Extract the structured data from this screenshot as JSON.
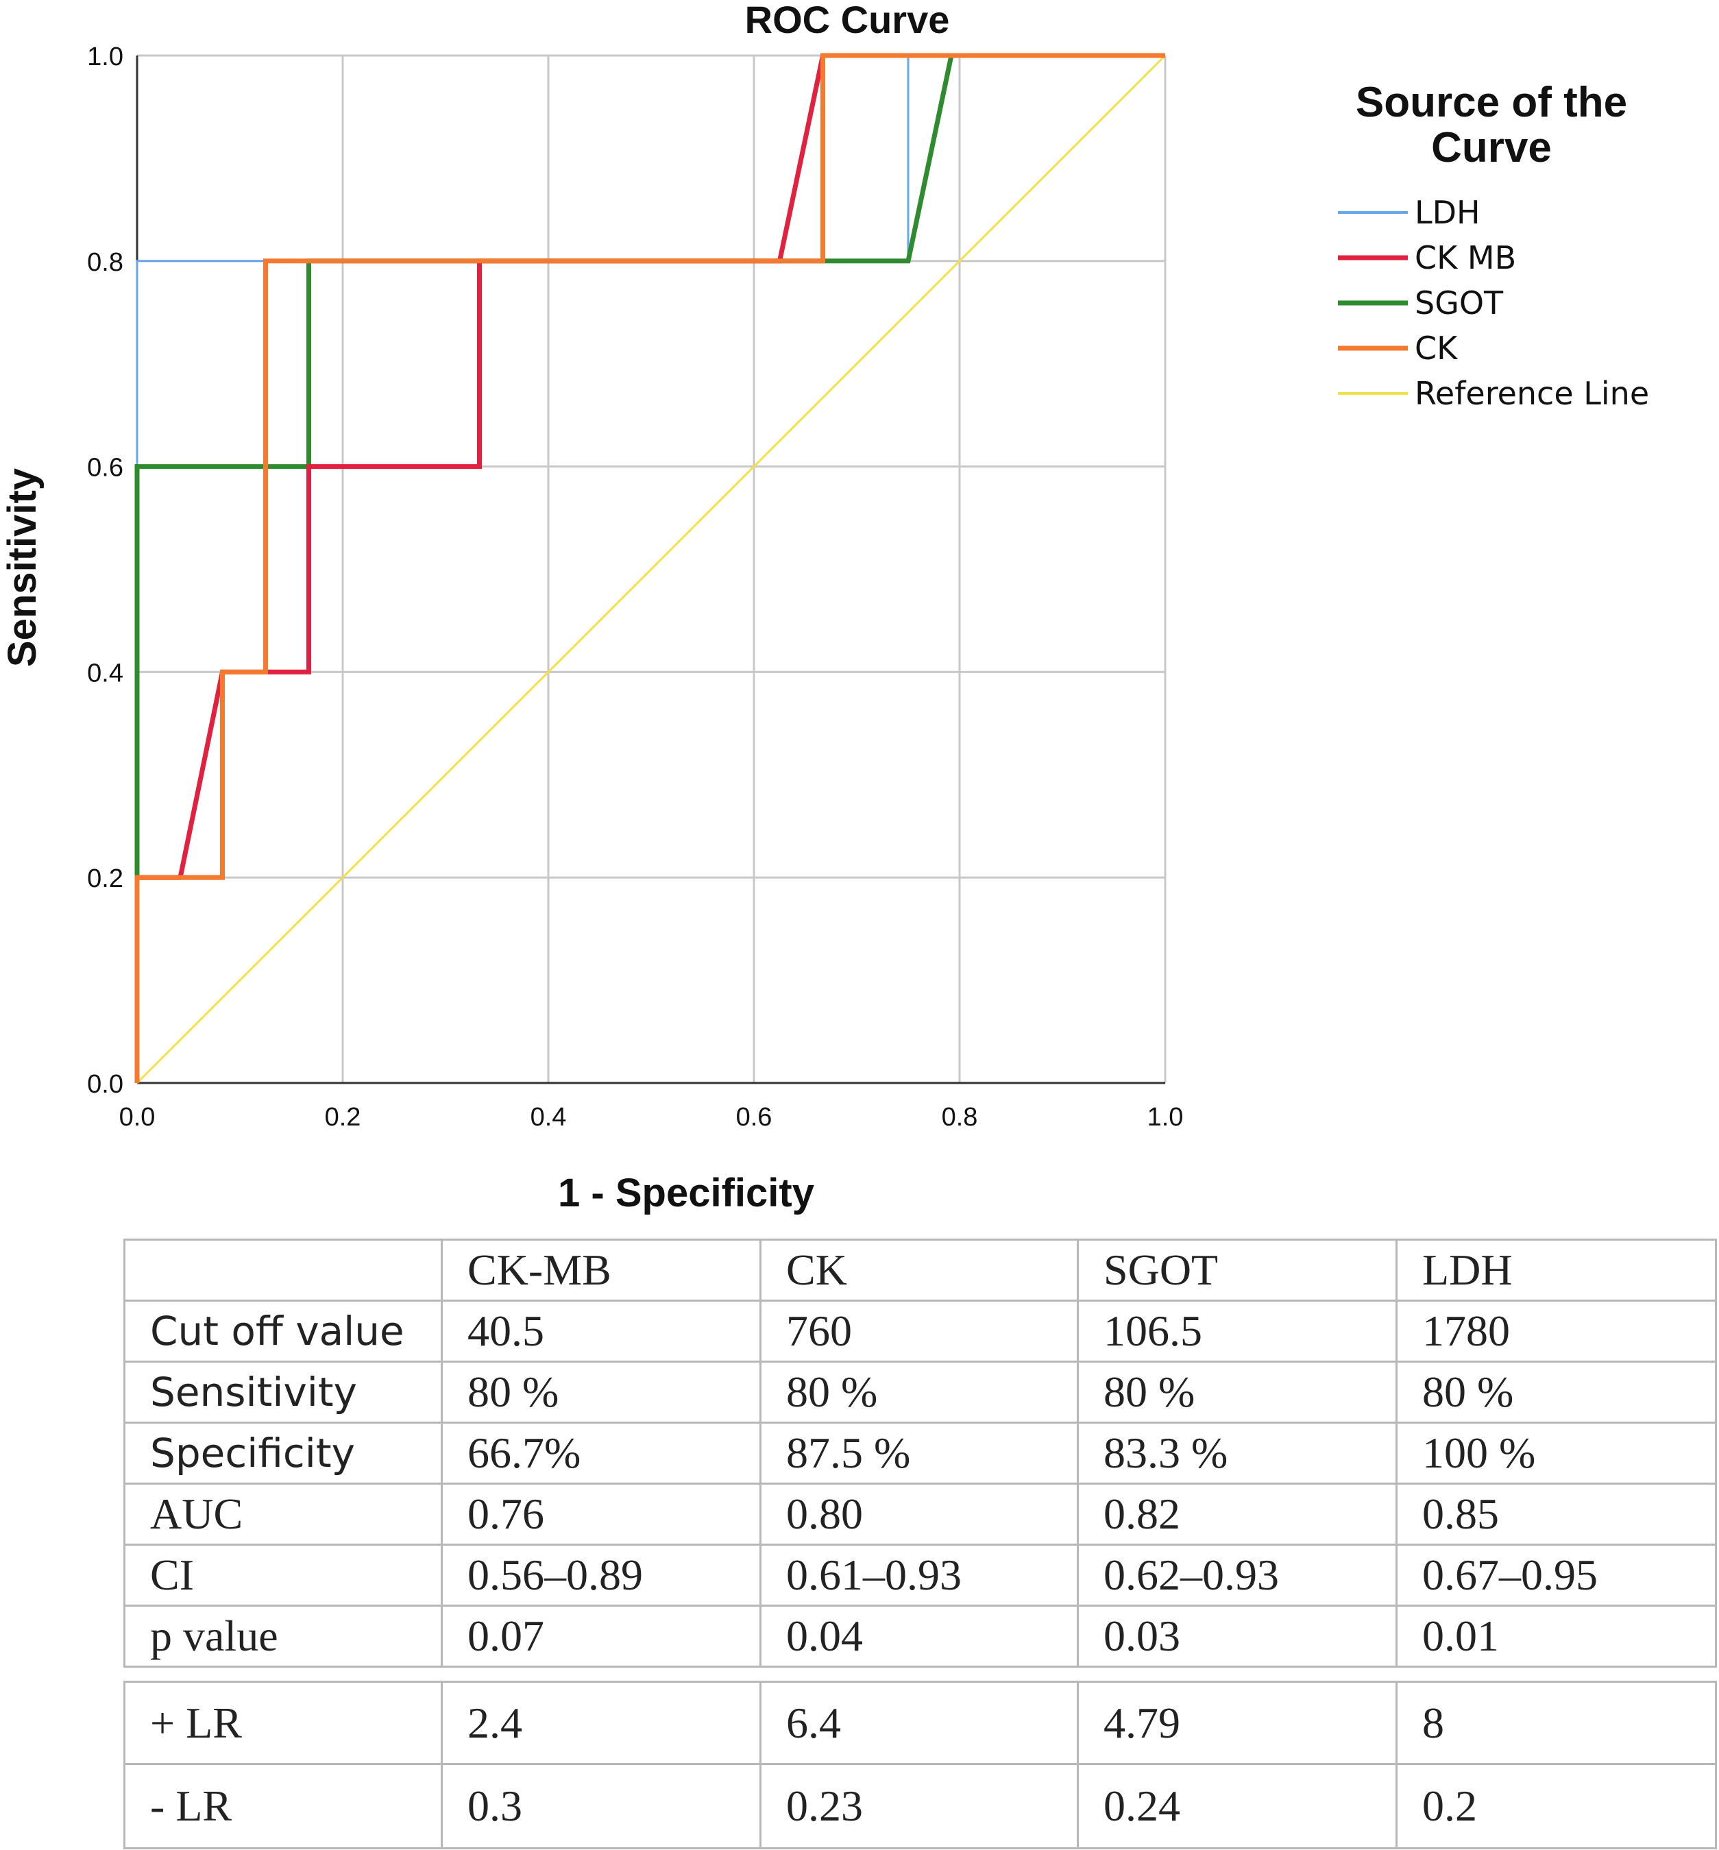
{
  "chart_data": {
    "type": "line",
    "title": "ROC Curve",
    "xlabel": "1 - Specificity",
    "ylabel": "Sensitivity",
    "xlim": [
      0,
      1
    ],
    "ylim": [
      0,
      1
    ],
    "x_ticks": [
      "0.0",
      "0.2",
      "0.4",
      "0.6",
      "0.8",
      "1.0"
    ],
    "y_ticks": [
      "0.0",
      "0.2",
      "0.4",
      "0.6",
      "0.8",
      "1.0"
    ],
    "grid": true,
    "legend": {
      "title": "Source of the Curve",
      "placement": "right"
    },
    "series": [
      {
        "name": "LDH",
        "color": "#6aa6e8",
        "x": [
          0,
          0,
          0,
          0.75,
          0.75,
          1.0
        ],
        "y": [
          0,
          0.6,
          0.8,
          0.8,
          1.0,
          1.0
        ]
      },
      {
        "name": "CK MB",
        "color": "#e0213f",
        "x": [
          0,
          0,
          0.042,
          0.083,
          0.167,
          0.167,
          0.333,
          0.333,
          0.625,
          0.667,
          1.0
        ],
        "y": [
          0,
          0.2,
          0.2,
          0.4,
          0.4,
          0.6,
          0.6,
          0.8,
          0.8,
          1.0,
          1.0
        ]
      },
      {
        "name": "SGOT",
        "color": "#2e8b2e",
        "x": [
          0,
          0,
          0,
          0.167,
          0.167,
          0.75,
          0.792,
          1.0
        ],
        "y": [
          0,
          0.2,
          0.6,
          0.6,
          0.8,
          0.8,
          1.0,
          1.0
        ]
      },
      {
        "name": "CK",
        "color": "#f47a30",
        "x": [
          0,
          0,
          0.083,
          0.083,
          0.125,
          0.125,
          0.667,
          0.667,
          1.0
        ],
        "y": [
          0,
          0.2,
          0.2,
          0.4,
          0.4,
          0.8,
          0.8,
          1.0,
          1.0
        ]
      },
      {
        "name": "Reference Line",
        "color": "#f2e24a",
        "x": [
          0,
          1
        ],
        "y": [
          0,
          1
        ]
      }
    ]
  },
  "table": {
    "headers": [
      "",
      "CK-MB",
      "CK",
      "SGOT",
      "LDH"
    ],
    "rows": [
      [
        "Cut off value",
        "40.5",
        "760",
        "106.5",
        "1780"
      ],
      [
        "Sensitivity",
        "80 %",
        "80 %",
        "80 %",
        "80 %"
      ],
      [
        "Specificity",
        "66.7%",
        "87.5 %",
        "83.3 %",
        "100 %"
      ],
      [
        "AUC",
        "0.76",
        "0.80",
        "0.82",
        "0.85"
      ],
      [
        "CI",
        "0.56–0.89",
        "0.61–0.93",
        "0.62–0.93",
        "0.67–0.95"
      ],
      [
        "p value",
        "0.07",
        "0.04",
        "0.03",
        "0.01"
      ]
    ],
    "lr_rows": [
      [
        "+ LR",
        "2.4",
        "6.4",
        "4.79",
        "8"
      ],
      [
        "- LR",
        "0.3",
        "0.23",
        "0.24",
        "0.2"
      ]
    ]
  }
}
